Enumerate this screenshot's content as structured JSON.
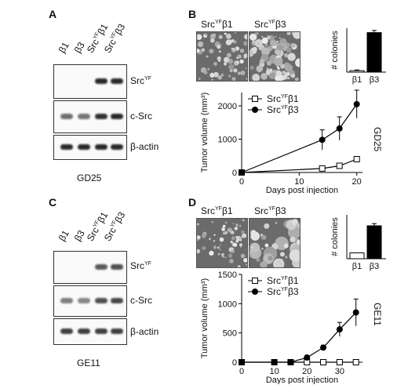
{
  "panels": {
    "A": {
      "letter": "A",
      "lanes": [
        {
          "base": "β1",
          "sup": ""
        },
        {
          "base": "β3",
          "sup": ""
        },
        {
          "pre": "Src",
          "sup": "YF",
          "base": "β1"
        },
        {
          "pre": "Src",
          "sup": "YF",
          "base": "β3"
        }
      ],
      "blots": [
        {
          "pre": "Src",
          "sup": "YF",
          "post": ""
        },
        {
          "pre": "c-Src",
          "sup": "",
          "post": ""
        },
        {
          "pre": "β-actin",
          "sup": "",
          "post": ""
        }
      ],
      "band_intensity": [
        [
          0,
          0,
          1,
          1
        ],
        [
          0.55,
          0.5,
          0.95,
          1
        ],
        [
          1,
          1,
          1,
          1
        ]
      ],
      "cell_line": "GD25"
    },
    "C": {
      "letter": "C",
      "lanes": [
        {
          "base": "β1",
          "sup": ""
        },
        {
          "base": "β3",
          "sup": ""
        },
        {
          "pre": "Src",
          "sup": "YF",
          "base": "β1"
        },
        {
          "pre": "Src",
          "sup": "YF",
          "base": "β3"
        }
      ],
      "blots": [
        {
          "pre": "Src",
          "sup": "YF",
          "post": ""
        },
        {
          "pre": "c-Src",
          "sup": "",
          "post": ""
        },
        {
          "pre": "β-actin",
          "sup": "",
          "post": ""
        }
      ],
      "band_intensity": [
        [
          0,
          0,
          0.7,
          0.75
        ],
        [
          0.45,
          0.4,
          0.75,
          0.8
        ],
        [
          0.85,
          0.85,
          0.85,
          0.85
        ]
      ],
      "cell_line": "GE11"
    },
    "B": {
      "letter": "B",
      "photo_titles": [
        {
          "pre": "Src",
          "sup": "YF",
          "post": "β1"
        },
        {
          "pre": "Src",
          "sup": "YF",
          "post": "β3"
        }
      ],
      "side_label": "GD25"
    },
    "D": {
      "letter": "D",
      "photo_titles": [
        {
          "pre": "Src",
          "sup": "YF",
          "post": "β1"
        },
        {
          "pre": "Src",
          "sup": "YF",
          "post": "β3"
        }
      ],
      "side_label": "GE11"
    }
  },
  "chart_data": [
    {
      "id": "B-colonies",
      "type": "bar",
      "categories": [
        "β1",
        "β3"
      ],
      "values": [
        2,
        54
      ],
      "errors": [
        1,
        3
      ],
      "colors": [
        "#ffffff",
        "#000000"
      ],
      "ylabel": "# colonies",
      "ylim": [
        0,
        60
      ]
    },
    {
      "id": "B-tumor",
      "type": "line",
      "xlabel": "Days post injection",
      "ylabel": "Tumor volume (mm³)",
      "xlim": [
        0,
        21
      ],
      "ylim": [
        0,
        2400
      ],
      "xticks": [
        0,
        10,
        20
      ],
      "yticks": [
        0,
        1000,
        2000
      ],
      "series": [
        {
          "name": "SrcYFβ1",
          "name_pre": "Src",
          "name_sup": "YF",
          "name_post": "β1",
          "marker": "open-square",
          "x": [
            0,
            14,
            17,
            20
          ],
          "y": [
            0,
            120,
            200,
            400
          ],
          "err": [
            0,
            40,
            50,
            70
          ]
        },
        {
          "name": "SrcYFβ3",
          "name_pre": "Src",
          "name_sup": "YF",
          "name_post": "β3",
          "marker": "filled-circle",
          "x": [
            0,
            14,
            17,
            20
          ],
          "y": [
            0,
            980,
            1320,
            2050
          ],
          "err": [
            0,
            300,
            350,
            420
          ]
        }
      ],
      "legend": "top-left"
    },
    {
      "id": "D-colonies",
      "type": "bar",
      "categories": [
        "β1",
        "β3"
      ],
      "values": [
        8,
        45
      ],
      "errors": [
        0,
        3
      ],
      "colors": [
        "#ffffff",
        "#000000"
      ],
      "ylabel": "# colonies",
      "ylim": [
        0,
        60
      ]
    },
    {
      "id": "D-tumor",
      "type": "line",
      "xlabel": "Days post injection",
      "ylabel": "Tumor volume (mm³)",
      "xlim": [
        0,
        37
      ],
      "ylim": [
        0,
        1500
      ],
      "xticks": [
        0,
        10,
        20,
        30
      ],
      "yticks": [
        0,
        500,
        1000,
        1500
      ],
      "series": [
        {
          "name": "SrcYFβ1",
          "name_pre": "Src",
          "name_sup": "YF",
          "name_post": "β1",
          "marker": "open-square",
          "x": [
            0,
            10,
            15,
            20,
            25,
            30,
            35
          ],
          "y": [
            0,
            0,
            0,
            0,
            0,
            0,
            0
          ],
          "err": [
            0,
            0,
            0,
            0,
            0,
            0,
            0
          ]
        },
        {
          "name": "SrcYFβ3",
          "name_pre": "Src",
          "name_sup": "YF",
          "name_post": "β3",
          "marker": "filled-circle",
          "x": [
            0,
            10,
            15,
            20,
            25,
            30,
            35
          ],
          "y": [
            0,
            0,
            0,
            80,
            250,
            560,
            850
          ],
          "err": [
            0,
            0,
            0,
            20,
            40,
            120,
            230
          ]
        }
      ],
      "legend": "top-left"
    }
  ]
}
